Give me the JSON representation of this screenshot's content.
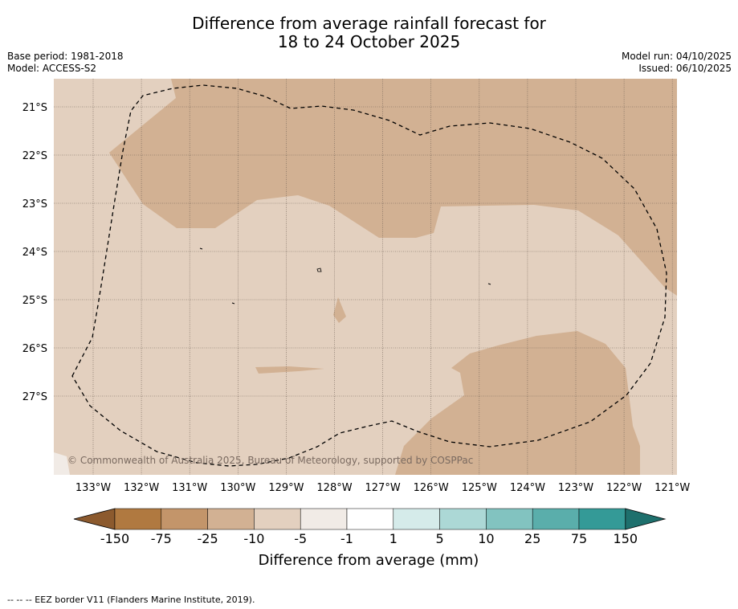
{
  "header": {
    "title_line1": "Difference from average rainfall forecast for",
    "title_line2": "18 to 24 October 2025",
    "base_period": "Base period: 1981-2018",
    "model": "Model: ACCESS-S2",
    "model_run": "Model run: 04/10/2025",
    "issued": "Issued: 06/10/2025"
  },
  "map": {
    "lat_labels": [
      "21°S",
      "22°S",
      "23°S",
      "24°S",
      "25°S",
      "26°S",
      "27°S"
    ],
    "lon_labels": [
      "133°W",
      "132°W",
      "131°W",
      "130°W",
      "129°W",
      "128°W",
      "127°W",
      "126°W",
      "125°W",
      "124°W",
      "123°W",
      "122°W",
      "121°W"
    ],
    "copyright": "© Commonwealth of Australia 2025, Bureau of Meteorology, supported by COSPPac",
    "fill_colors": {
      "light_dry": "#e3d0bf",
      "medium_dry": "#d2b193",
      "near_zero": "#f1ebe6"
    },
    "eez_color": "#000000"
  },
  "legend": {
    "ticks": [
      "-150",
      "-75",
      "-25",
      "-10",
      "-5",
      "-1",
      "1",
      "5",
      "10",
      "25",
      "75",
      "150"
    ],
    "colors": [
      "#8c5a2e",
      "#b07940",
      "#c3956a",
      "#d2b193",
      "#e3d0bf",
      "#f1ebe6",
      "#ffffff",
      "#d5ebea",
      "#acd8d6",
      "#82c3c0",
      "#5aaeab",
      "#349a97",
      "#1e706d"
    ],
    "label": "Difference from average (mm)"
  },
  "footer": {
    "eez_note": "--  --  -- EEZ border V11 (Flanders Marine Institute, 2019)."
  }
}
